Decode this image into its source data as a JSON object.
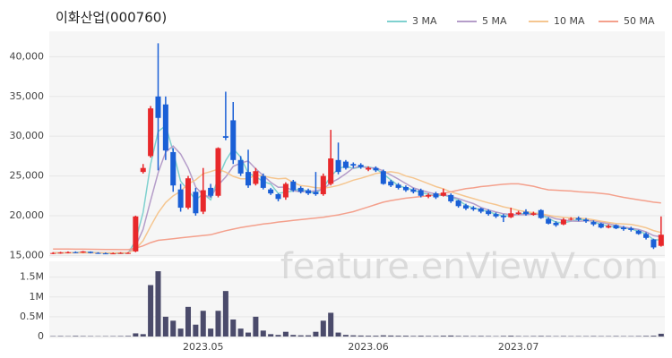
{
  "chart_data": [
    {
      "type": "candlestick",
      "title": "이화산업(000760)",
      "legend": "upper right",
      "up_color": "#e8282b",
      "down_color": "#1a5fd6",
      "open": [
        15250,
        15300,
        15350,
        15400,
        15350,
        15450,
        15300,
        15250,
        15200,
        15250,
        15300,
        15500,
        25500,
        27500,
        35000,
        34000,
        28000,
        23300,
        21000,
        23000,
        20500,
        23500,
        22500,
        30000,
        32000,
        27000,
        25500,
        24000,
        25000,
        23300,
        22700,
        22300,
        24300,
        23500,
        23200,
        23000,
        22700,
        24000,
        27000,
        26800,
        26500,
        26400,
        25800,
        26000,
        25600,
        24300,
        23900,
        23600,
        23300,
        23200,
        22400,
        22800,
        22500,
        22600,
        21900,
        21300,
        21000,
        20900,
        20600,
        20200,
        20000,
        19800,
        20200,
        20500,
        20100,
        20700,
        19600,
        19100,
        18900,
        19500,
        19700,
        19500,
        19200,
        19000,
        18500,
        18800,
        18500,
        18400,
        18100,
        17700,
        17000,
        16200
      ],
      "high": [
        15400,
        15450,
        15500,
        15500,
        15550,
        15500,
        15400,
        15350,
        15350,
        15400,
        15400,
        20000,
        26500,
        33800,
        41700,
        35000,
        28500,
        24000,
        25000,
        23500,
        26000,
        24000,
        28600,
        35600,
        34300,
        27500,
        28300,
        26000,
        25300,
        23500,
        22800,
        24200,
        24500,
        23700,
        23400,
        25500,
        25300,
        30800,
        29200,
        27000,
        26700,
        26600,
        26200,
        26200,
        25800,
        24500,
        24100,
        23800,
        23500,
        23400,
        22800,
        23000,
        23400,
        22800,
        22000,
        21500,
        21200,
        21000,
        20800,
        20400,
        20200,
        21000,
        20600,
        20800,
        20500,
        20800,
        19800,
        19300,
        19700,
        19800,
        19900,
        19700,
        19400,
        19100,
        18900,
        18900,
        18700,
        18600,
        18200,
        17900,
        17100,
        19900
      ],
      "low": [
        15150,
        15200,
        15250,
        15300,
        15300,
        15250,
        15200,
        15150,
        15150,
        15200,
        15200,
        15400,
        25300,
        27300,
        25700,
        27000,
        23000,
        20500,
        20800,
        20000,
        20200,
        22300,
        22300,
        29500,
        26500,
        25000,
        23500,
        23800,
        23300,
        22600,
        21800,
        22000,
        23000,
        22800,
        22600,
        22500,
        22500,
        23800,
        25200,
        25800,
        26000,
        25900,
        25600,
        25500,
        23900,
        23600,
        23300,
        23000,
        22800,
        22300,
        22200,
        22100,
        22400,
        21600,
        21000,
        20700,
        20600,
        20300,
        20000,
        19700,
        19200,
        19700,
        20100,
        20000,
        20000,
        19600,
        18900,
        18600,
        18800,
        19400,
        19300,
        19100,
        18700,
        18400,
        18400,
        18300,
        18100,
        18000,
        17600,
        17000,
        15800,
        16100
      ],
      "close": [
        15300,
        15350,
        15400,
        15350,
        15500,
        15300,
        15250,
        15200,
        15250,
        15300,
        15300,
        19900,
        26000,
        33500,
        32300,
        28200,
        23800,
        21000,
        24700,
        20300,
        23200,
        22500,
        28500,
        29800,
        27000,
        25300,
        23800,
        25600,
        23500,
        22800,
        22100,
        24000,
        23200,
        23000,
        22800,
        22700,
        25000,
        27200,
        25500,
        26000,
        26300,
        26100,
        26000,
        25700,
        24000,
        23800,
        23500,
        23200,
        23000,
        22500,
        22600,
        22300,
        22900,
        21800,
        21200,
        20900,
        20800,
        20500,
        20200,
        19900,
        19800,
        20300,
        20400,
        20200,
        20300,
        19700,
        19000,
        18800,
        19500,
        19600,
        19500,
        19300,
        18900,
        18500,
        18700,
        18400,
        18300,
        18200,
        17700,
        17200,
        16000,
        17600
      ],
      "series": [
        {
          "name": "3 MA",
          "color": "#7fd1cf",
          "values": [
            15300,
            15300,
            15350,
            15370,
            15420,
            15380,
            15350,
            15250,
            15230,
            15250,
            15280,
            16830,
            20400,
            26470,
            30600,
            31330,
            28100,
            24330,
            23170,
            22000,
            22730,
            22000,
            24730,
            26930,
            28430,
            27370,
            25370,
            24900,
            24300,
            23970,
            22800,
            22970,
            23100,
            23400,
            23000,
            22830,
            23500,
            24970,
            25900,
            26230,
            25930,
            26130,
            26130,
            25930,
            25230,
            24500,
            23770,
            23500,
            23230,
            22900,
            22700,
            22470,
            22600,
            22330,
            21970,
            21300,
            20970,
            20730,
            20500,
            20200,
            19970,
            20000,
            20170,
            20300,
            20300,
            20070,
            19670,
            19170,
            19100,
            19300,
            19530,
            19470,
            19230,
            18900,
            18700,
            18530,
            18470,
            18300,
            18070,
            17700,
            16970,
            16930
          ]
        },
        {
          "name": "5 MA",
          "color": "#b59dc9",
          "values": [
            15330,
            15330,
            15330,
            15330,
            15330,
            15330,
            15330,
            15330,
            15330,
            15330,
            15330,
            16150,
            18280,
            21900,
            25400,
            28000,
            28760,
            27760,
            26000,
            23600,
            22600,
            22340,
            23840,
            24860,
            26200,
            26620,
            26880,
            25900,
            25040,
            24200,
            23560,
            23600,
            23120,
            23020,
            23020,
            23140,
            23340,
            24140,
            24640,
            25280,
            26000,
            26220,
            25980,
            26020,
            25620,
            25120,
            24600,
            24040,
            23500,
            23200,
            22940,
            22720,
            22660,
            22420,
            22160,
            21820,
            21520,
            21040,
            20720,
            20460,
            20240,
            20140,
            20120,
            20120,
            20200,
            20180,
            19920,
            19600,
            19460,
            19320,
            19280,
            19340,
            19360,
            19160,
            18980,
            18760,
            18560,
            18420,
            18260,
            17960,
            17480,
            17340
          ]
        },
        {
          "name": "10 MA",
          "color": "#f5c690",
          "values": [
            15320,
            15320,
            15320,
            15320,
            15320,
            15320,
            15320,
            15320,
            15320,
            15320,
            15320,
            15780,
            16850,
            18660,
            20360,
            21650,
            22500,
            23070,
            24000,
            24500,
            25290,
            25550,
            25850,
            25480,
            24950,
            24650,
            24650,
            25120,
            24990,
            24780,
            24630,
            24700,
            24170,
            23780,
            23680,
            23510,
            23450,
            23600,
            23800,
            24120,
            24470,
            24700,
            25000,
            25300,
            25420,
            25530,
            25380,
            24980,
            24750,
            24400,
            24030,
            23650,
            23380,
            22990,
            22710,
            22420,
            22150,
            21880,
            21600,
            21390,
            21110,
            20910,
            20660,
            20500,
            20350,
            20230,
            20050,
            19880,
            19780,
            19720,
            19690,
            19630,
            19480,
            19310,
            19150,
            19020,
            18950,
            18890,
            18710,
            18470,
            18120,
            17880
          ]
        },
        {
          "name": "50 MA",
          "color": "#f4a08c",
          "values": [
            15800,
            15800,
            15790,
            15780,
            15780,
            15770,
            15760,
            15750,
            15740,
            15730,
            15720,
            15900,
            16200,
            16600,
            16900,
            17000,
            17100,
            17200,
            17300,
            17400,
            17500,
            17600,
            17850,
            18100,
            18300,
            18500,
            18650,
            18800,
            18950,
            19050,
            19200,
            19300,
            19400,
            19500,
            19600,
            19700,
            19800,
            19950,
            20100,
            20300,
            20500,
            20800,
            21100,
            21400,
            21700,
            21900,
            22050,
            22200,
            22300,
            22400,
            22500,
            22600,
            22800,
            23000,
            23200,
            23400,
            23500,
            23650,
            23750,
            23850,
            23950,
            24000,
            24000,
            23850,
            23700,
            23450,
            23250,
            23200,
            23150,
            23100,
            23000,
            22950,
            22900,
            22800,
            22700,
            22500,
            22300,
            22150,
            22000,
            21850,
            21700,
            21600
          ]
        }
      ],
      "ylim": [
        14700,
        43200
      ],
      "yticks": [
        {
          "value": 15000,
          "label": "15,000"
        },
        {
          "value": 20000,
          "label": "20,000"
        },
        {
          "value": 25000,
          "label": "25,000"
        },
        {
          "value": 30000,
          "label": "30,000"
        },
        {
          "value": 35000,
          "label": "35,000"
        },
        {
          "value": 40000,
          "label": "40,000"
        }
      ],
      "grid": true,
      "watermark": "feature.enViewV.com"
    },
    {
      "type": "bar",
      "color": "#4b4b6b",
      "categories": [
        null,
        null,
        null,
        null,
        null,
        null,
        null,
        null,
        null,
        null,
        null,
        null,
        null,
        null,
        null,
        null,
        null,
        null,
        null,
        null,
        "2023.05",
        null,
        null,
        null,
        null,
        null,
        null,
        null,
        null,
        null,
        null,
        null,
        null,
        null,
        null,
        null,
        null,
        null,
        null,
        null,
        null,
        null,
        "2023.06",
        null,
        null,
        null,
        null,
        null,
        null,
        null,
        null,
        null,
        null,
        null,
        null,
        null,
        null,
        null,
        null,
        null,
        null,
        null,
        "2023.07",
        null,
        null,
        null,
        null,
        null,
        null,
        null,
        null,
        null,
        null,
        null,
        null,
        null,
        null,
        null,
        null,
        null,
        null,
        null
      ],
      "values": [
        10000,
        12000,
        9000,
        15000,
        11000,
        10000,
        8000,
        9000,
        10000,
        12000,
        15000,
        80000,
        60000,
        1300000,
        1650000,
        500000,
        400000,
        200000,
        750000,
        300000,
        650000,
        200000,
        650000,
        1150000,
        430000,
        200000,
        100000,
        500000,
        150000,
        60000,
        40000,
        120000,
        40000,
        30000,
        30000,
        120000,
        400000,
        600000,
        100000,
        40000,
        30000,
        25000,
        20000,
        20000,
        30000,
        25000,
        20000,
        20000,
        15000,
        20000,
        15000,
        15000,
        20000,
        25000,
        15000,
        15000,
        12000,
        15000,
        12000,
        10000,
        15000,
        20000,
        12000,
        10000,
        12000,
        15000,
        12000,
        10000,
        12000,
        10000,
        10000,
        10000,
        12000,
        10000,
        10000,
        12000,
        10000,
        10000,
        12000,
        15000,
        20000,
        70000
      ],
      "ylim": [
        0,
        1900000
      ],
      "yticks": [
        0,
        {
          "value": 500000,
          "label": "0.5M"
        },
        {
          "value": 1000000,
          "label": "1M"
        },
        {
          "value": 1500000,
          "label": "1.5M"
        }
      ],
      "grid": true
    }
  ]
}
